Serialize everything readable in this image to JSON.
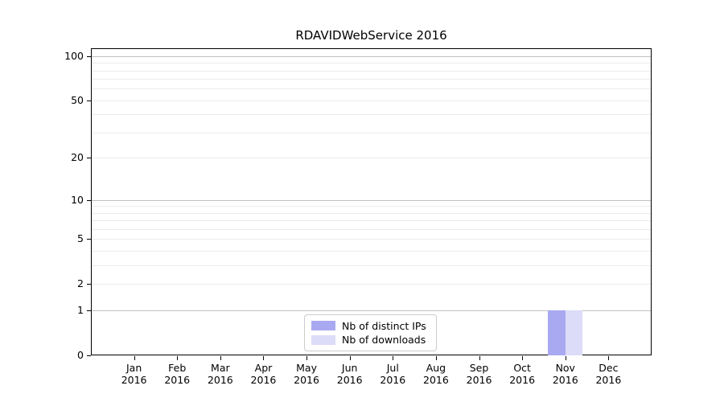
{
  "title": "RDAVIDWebService 2016",
  "chart_data": {
    "type": "bar",
    "title": "RDAVIDWebService 2016",
    "categories": [
      "Jan",
      "Feb",
      "Mar",
      "Apr",
      "May",
      "Jun",
      "Jul",
      "Aug",
      "Sep",
      "Oct",
      "Nov",
      "Dec"
    ],
    "year_label": "2016",
    "series": [
      {
        "name": "Nb of distinct IPs",
        "color": "#a9a9f1",
        "values": [
          0,
          0,
          0,
          0,
          0,
          0,
          0,
          0,
          0,
          0,
          1,
          0
        ]
      },
      {
        "name": "Nb of downloads",
        "color": "#dcdcf8",
        "values": [
          0,
          0,
          0,
          0,
          0,
          0,
          0,
          0,
          0,
          0,
          1,
          0
        ]
      }
    ],
    "y_axis": {
      "scale": "log1p",
      "tick_values": [
        0,
        1,
        2,
        5,
        10,
        20,
        50,
        100
      ],
      "major_grid_values": [
        1,
        10,
        100
      ],
      "minor_grid_values": [
        2,
        3,
        4,
        5,
        6,
        7,
        8,
        9,
        20,
        30,
        40,
        50,
        60,
        70,
        80,
        90
      ],
      "max": 113,
      "min": 0
    },
    "x_axis": {
      "slots": 13,
      "first_month_slot": 1
    },
    "legend": {
      "position": "lower center"
    },
    "grid": true
  },
  "colors": {
    "bar_distinct_ips": "#a9a9f1",
    "bar_downloads": "#dcdcf8",
    "major_grid": "#c0c0c0",
    "minor_grid": "#ebebeb",
    "spine": "#000000",
    "legend_border": "#cccccc",
    "background": "#ffffff"
  }
}
